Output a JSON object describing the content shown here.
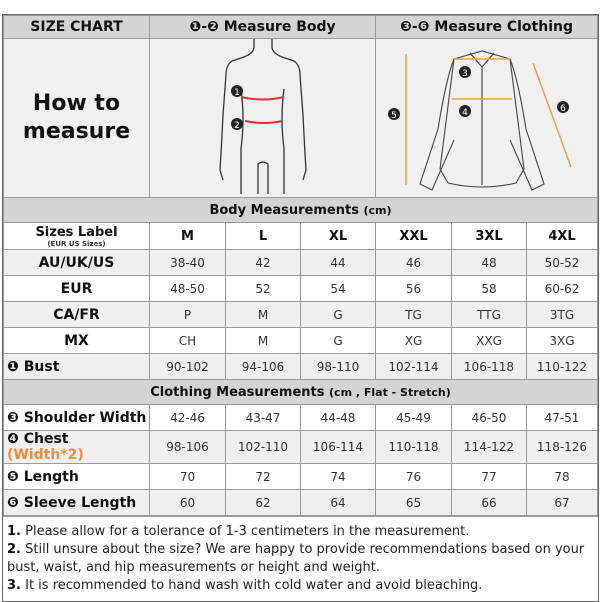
{
  "header": {
    "title": "SIZE CHART",
    "body_label": "❶-❷ Measure Body",
    "clothing_label": "❸-❻ Measure Clothing",
    "how_to": [
      "How to",
      "measure"
    ]
  },
  "figures": {
    "body_markers": [
      "1",
      "2"
    ],
    "shirt_markers": [
      "3",
      "4",
      "5",
      "6"
    ],
    "colors": {
      "body_lines": "#e0303a",
      "shirt_lines": "#e8a050"
    }
  },
  "body_section": {
    "title": "Body  Measurements",
    "unit": "(cm)"
  },
  "sizes_label": {
    "title": "Sizes Label",
    "sub": "(EUR US Sizes)"
  },
  "sizes": [
    "M",
    "L",
    "XL",
    "XXL",
    "3XL",
    "4XL"
  ],
  "body_rows": [
    {
      "label": "AU/UK/US",
      "values": [
        "38-40",
        "42",
        "44",
        "46",
        "48",
        "50-52"
      ]
    },
    {
      "label": "EUR",
      "values": [
        "48-50",
        "52",
        "54",
        "56",
        "58",
        "60-62"
      ]
    },
    {
      "label": "CA/FR",
      "values": [
        "P",
        "M",
        "G",
        "TG",
        "TTG",
        "3TG"
      ]
    },
    {
      "label": "MX",
      "values": [
        "CH",
        "M",
        "G",
        "XG",
        "XXG",
        "3XG"
      ]
    },
    {
      "marker": "❶",
      "label": "Bust",
      "values": [
        "90-102",
        "94-106",
        "98-110",
        "102-114",
        "106-118",
        "110-122"
      ]
    }
  ],
  "clothing_section": {
    "title": "Clothing  Measurements",
    "unit": "(cm , Flat - Stretch)"
  },
  "clothing_rows": [
    {
      "marker": "❸",
      "label": "Shoulder Width",
      "values": [
        "42-46",
        "43-47",
        "44-48",
        "45-49",
        "46-50",
        "47-51"
      ]
    },
    {
      "marker": "❹",
      "label": "Chest",
      "note": "(Width*2)",
      "values": [
        "98-106",
        "102-110",
        "106-114",
        "110-118",
        "114-122",
        "118-126"
      ]
    },
    {
      "marker": "❺",
      "label": "Length",
      "values": [
        "70",
        "72",
        "74",
        "76",
        "77",
        "78"
      ]
    },
    {
      "marker": "❻",
      "label": "Sleeve Length",
      "values": [
        "60",
        "62",
        "64",
        "65",
        "66",
        "67"
      ]
    }
  ],
  "notes": [
    {
      "num": "1.",
      "text": " Please allow for a tolerance of 1-3 centimeters in the measurement."
    },
    {
      "num": "2.",
      "text": " Still unsure about the size? We are happy to provide recommendations based on your bust, waist, and hip measurements or height and weight."
    },
    {
      "num": "3.",
      "text": " It is recommended to hand wash with cold water and avoid bleaching."
    }
  ]
}
